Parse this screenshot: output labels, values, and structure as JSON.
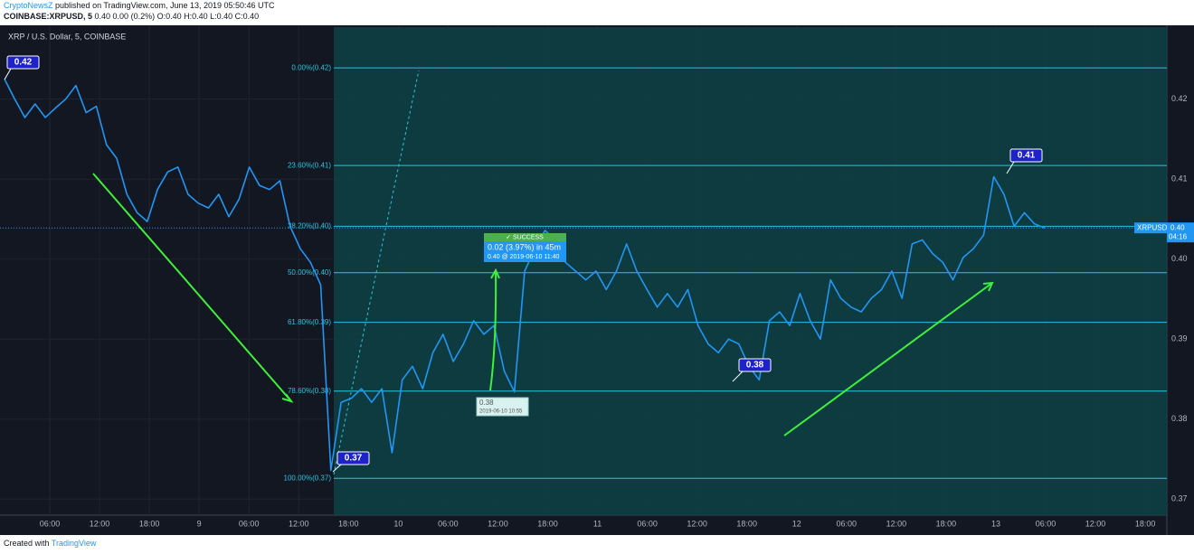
{
  "header": {
    "author": "CryptoNewsZ",
    "published": "published on TradingView.com, June 13, 2019 05:50:46 UTC",
    "symbol": "COINBASE:XRPUSD, 5",
    "quote": "0.40 0.00 (0.2%) O:0.40 H:0.40 L:0.40 C:0.40"
  },
  "chart_data": {
    "type": "line",
    "title": "XRP / U.S. Dollar, 5, COINBASE",
    "x_labels": [
      "06:00",
      "12:00",
      "18:00",
      "9",
      "06:00",
      "12:00",
      "18:00",
      "10",
      "06:00",
      "12:00",
      "18:00",
      "11",
      "06:00",
      "12:00",
      "18:00",
      "12",
      "06:00",
      "12:00",
      "18:00",
      "13",
      "06:00",
      "12:00",
      "18:00"
    ],
    "series": [
      {
        "name": "XRPUSD",
        "color": "#2196f3",
        "values": [
          0.4225,
          0.42,
          0.4177,
          0.4194,
          0.4177,
          0.4189,
          0.42,
          0.4217,
          0.4183,
          0.4191,
          0.4143,
          0.4126,
          0.4081,
          0.4058,
          0.4047,
          0.4087,
          0.4109,
          0.4115,
          0.4081,
          0.407,
          0.4064,
          0.4081,
          0.4053,
          0.4075,
          0.4115,
          0.4092,
          0.4087,
          0.4098,
          0.4041,
          0.4013,
          0.3996,
          0.3968,
          0.3736,
          0.3821,
          0.3826,
          0.3838,
          0.3821,
          0.3838,
          0.3758,
          0.3849,
          0.3866,
          0.3838,
          0.3883,
          0.3906,
          0.3872,
          0.3894,
          0.3923,
          0.3906,
          0.3917,
          0.386,
          0.3834,
          0.3985,
          0.4013,
          0.4036,
          0.4024,
          0.3996,
          0.3985,
          0.3974,
          0.3985,
          0.3962,
          0.3985,
          0.4019,
          0.3985,
          0.3962,
          0.394,
          0.3957,
          0.394,
          0.3962,
          0.3917,
          0.3894,
          0.3883,
          0.39,
          0.3894,
          0.3866,
          0.3849,
          0.3923,
          0.3934,
          0.3917,
          0.3957,
          0.3923,
          0.39,
          0.3974,
          0.3951,
          0.394,
          0.3934,
          0.3951,
          0.3962,
          0.3985,
          0.3951,
          0.4019,
          0.4024,
          0.4007,
          0.3996,
          0.3974,
          0.4002,
          0.4013,
          0.403,
          0.4103,
          0.4081,
          0.4041,
          0.4058,
          0.4044,
          0.4039
        ]
      }
    ],
    "ylim": [
      0.368,
      0.429
    ],
    "yticks": [
      0.37,
      0.38,
      0.39,
      {
        "value": 0.4,
        "label": "0.40"
      },
      0.41,
      0.42
    ],
    "grid": true,
    "fib_levels": [
      {
        "label": "0.00%(0.42)",
        "value": 0.4239
      },
      {
        "label": "23.60%(0.41)",
        "value": 0.4117
      },
      {
        "label": "38.20%(0.40)",
        "value": 0.4041
      },
      {
        "label": "50.00%(0.40)",
        "value": 0.3983
      },
      {
        "label": "61.80%(0.39)",
        "value": 0.3921
      },
      {
        "label": "78.60%(0.38)",
        "value": 0.3835
      },
      {
        "label": "100.00%(0.37)",
        "value": 0.3726
      }
    ],
    "annotations": [
      "0.42",
      "0.37",
      "0.38",
      "0.41"
    ],
    "trade": {
      "status": "✓ SUCCESS",
      "result": "0.02 (3.97%) in 45m",
      "exit": "0.40 @ 2019-06-10 11:40",
      "entry_price": "0.38",
      "entry_time": "2019-06-10 10:55"
    },
    "last_price": {
      "symbol": "XRPUSD",
      "label": "0.40",
      "countdown": "04:16"
    }
  },
  "footer": {
    "created": "Created with",
    "brand": "TradingView"
  }
}
